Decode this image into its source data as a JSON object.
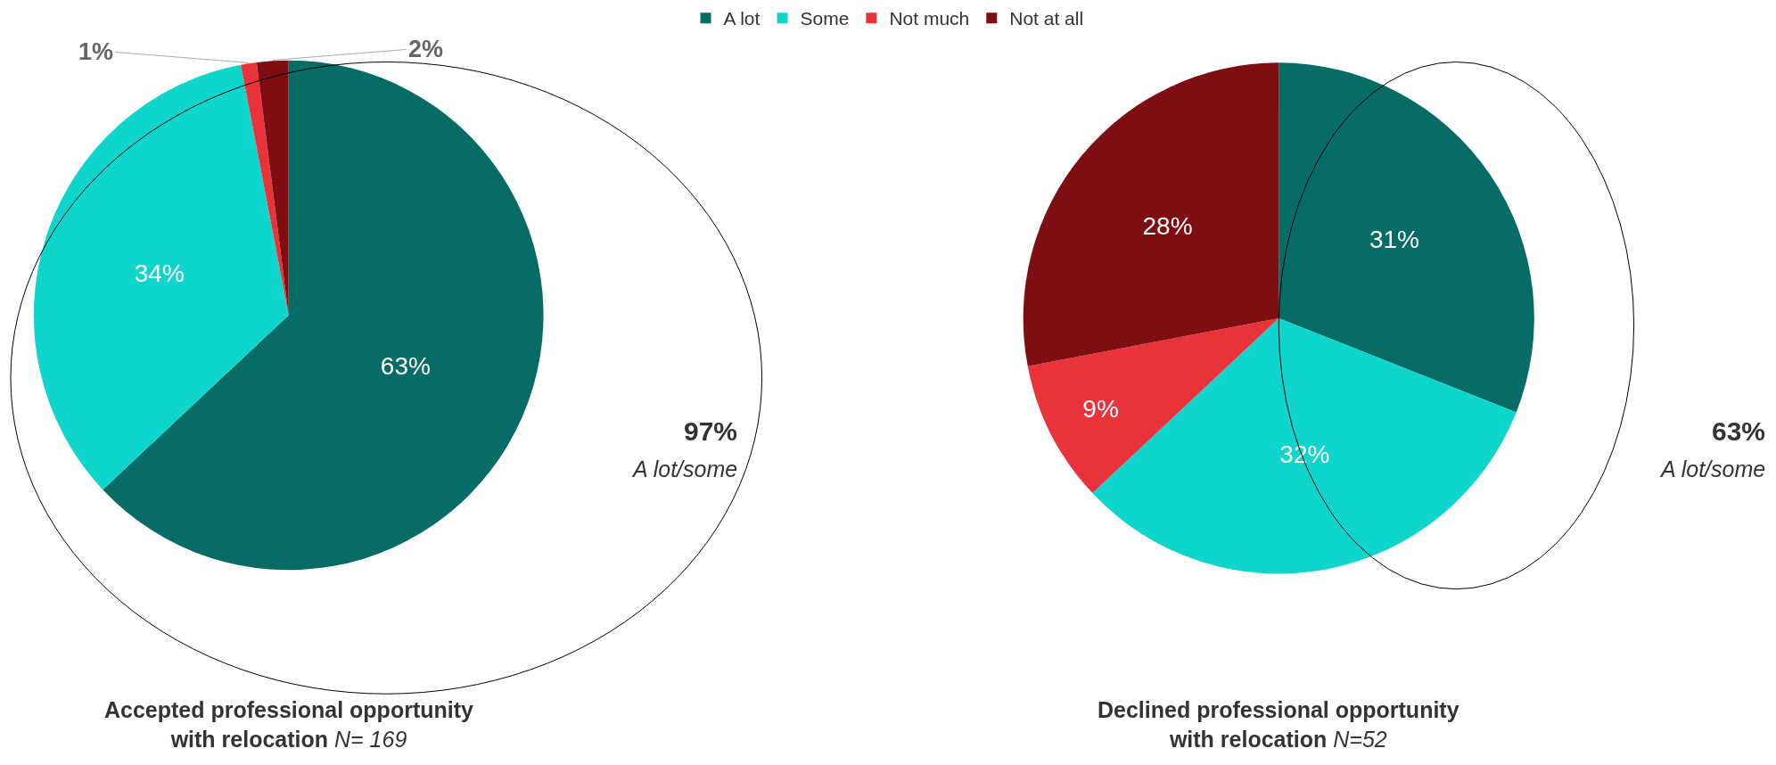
{
  "chart_data": [
    {
      "type": "pie",
      "title": "Accepted professional opportunity with relocation",
      "subtitle": "N= 169",
      "categories": [
        "A lot",
        "Some",
        "Not much",
        "Not at all"
      ],
      "values": [
        63,
        34,
        1,
        2
      ],
      "value_labels": [
        "63%",
        "34%",
        "1%",
        "2%"
      ],
      "colors": [
        "#076b66",
        "#0fd6cc",
        "#e8333a",
        "#7f0e12"
      ],
      "annotations": [
        "97%",
        "A lot/some"
      ],
      "legend": "top"
    },
    {
      "type": "pie",
      "title": "Declined professional opportunity with relocation",
      "subtitle": "N=52",
      "values": [
        31,
        32,
        9,
        28
      ],
      "value_labels": [
        "31%",
        "32%",
        "9%",
        "28%"
      ],
      "colors": [
        "#076b66",
        "#0fd6cc",
        "#e8333a",
        "#7f0e12"
      ],
      "annotations": [
        "63%",
        "A lot/some"
      ]
    }
  ]
}
